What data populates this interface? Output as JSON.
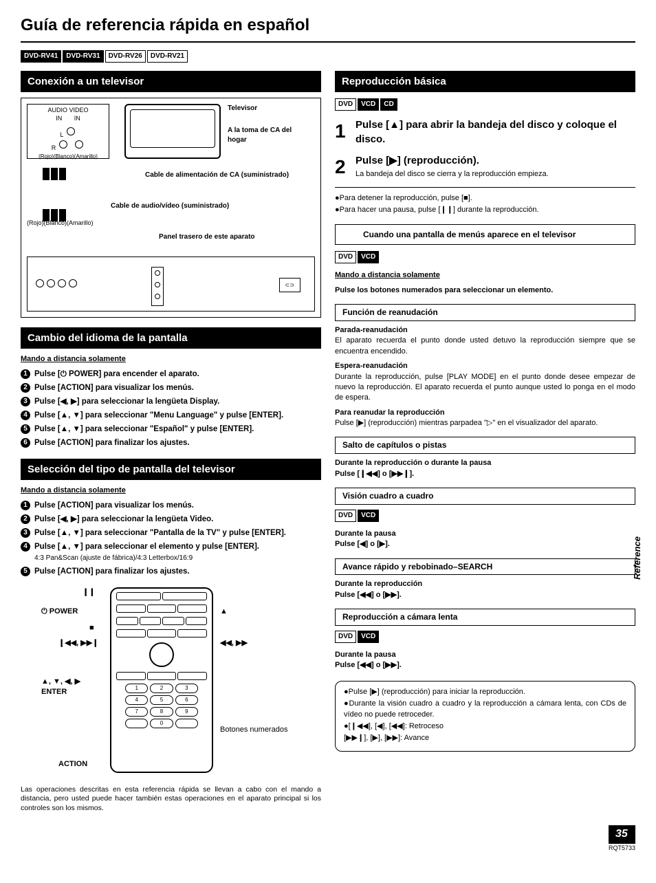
{
  "title": "Guía de referencia rápida en español",
  "models": [
    {
      "label": "DVD-RV41",
      "style": "inv"
    },
    {
      "label": "DVD-RV31",
      "style": "inv"
    },
    {
      "label": "DVD-RV26",
      "style": "out"
    },
    {
      "label": "DVD-RV21",
      "style": "out"
    }
  ],
  "left": {
    "sec1": {
      "header": "Conexión a un televisor",
      "tv": "Televisor",
      "ac": "A la toma de CA del hogar",
      "audio_header": "AUDIO VIDEO\nIN       IN",
      "cable_ac": "Cable de alimentación de CA (suministrado)",
      "cable_av": "Cable de audio/vídeo (suministrado)",
      "panel": "Panel trasero de este aparato",
      "colors": "(Rojo)(Blanco)(Amarillo)"
    },
    "sec2": {
      "header": "Cambio del idioma de la pantalla",
      "sub": "Mando a distancia solamente",
      "items": [
        "Pulse [⏻ POWER] para encender el aparato.",
        "Pulse [ACTION] para visualizar los menús.",
        "Pulse [◀, ▶] para seleccionar la lengüeta Display.",
        "Pulse [▲, ▼] para seleccionar \"Menu Language\" y pulse [ENTER].",
        "Pulse [▲, ▼] para seleccionar \"Español\" y pulse [ENTER].",
        "Pulse [ACTION] para finalizar los ajustes."
      ]
    },
    "sec3": {
      "header": "Selección del tipo de pantalla del televisor",
      "sub": "Mando a distancia solamente",
      "items": [
        {
          "t": "Pulse [ACTION] para visualizar los menús."
        },
        {
          "t": "Pulse [◀, ▶] para seleccionar la lengüeta Video."
        },
        {
          "t": "Pulse [▲, ▼] para seleccionar \"Pantalla de la TV\" y pulse [ENTER]."
        },
        {
          "t": "Pulse [▲, ▼] para seleccionar el elemento y pulse [ENTER].",
          "s": "4:3 Pan&Scan (ajuste de fábrica)/4:3 Letterbox/16:9"
        },
        {
          "t": "Pulse [ACTION] para finalizar los ajustes."
        }
      ]
    },
    "remote": {
      "labels": {
        "pause": "❙❙",
        "power": "⏻ POWER",
        "stop": "■",
        "skip": "❙◀◀, ▶▶❙",
        "arrows": "▲, ▼, ◀, ▶\nENTER",
        "action": "ACTION",
        "eject": "▲",
        "search": "◀◀, ▶▶",
        "numbered": "Botones numerados"
      },
      "note": "Las operaciones descritas en esta referencia rápida se llevan a cabo con el mando a distancia, pero usted puede hacer también estas operaciones en el aparato principal si los controles son los mismos."
    }
  },
  "right": {
    "sec1": {
      "header": "Reproducción básica",
      "discs": [
        {
          "label": "DVD",
          "style": "out"
        },
        {
          "label": "VCD",
          "style": "inv"
        },
        {
          "label": "CD",
          "style": "inv"
        }
      ],
      "step1": "Pulse [▲] para abrir la bandeja del disco y coloque el disco.",
      "step2h": "Pulse [▶] (reproducción).",
      "step2s": "La bandeja del disco se cierra y la reproducción empieza.",
      "bullets": [
        "●Para detener la reproducción, pulse [■].",
        "●Para hacer una pausa, pulse [❙❙] durante la reproducción."
      ],
      "menubox": "Cuando una pantalla de menús aparece en el televisor",
      "discs2": [
        {
          "label": "DVD",
          "style": "out"
        },
        {
          "label": "VCD",
          "style": "inv"
        }
      ],
      "remote_only": "Mando a distancia solamente",
      "press_num": "Pulse los botones numerados para seleccionar un elemento."
    },
    "resume": {
      "header": "Función de reanudación",
      "p1h": "Parada-reanudación",
      "p1": "El aparato recuerda el punto donde usted detuvo la reproducción siempre que se encuentra encendido.",
      "p2h": "Espera-reanudación",
      "p2": "Durante la reproducción, pulse [PLAY MODE] en el punto donde desee empezar de nuevo la reproducción. El aparato recuerda el punto aunque usted lo ponga en el modo de espera.",
      "p3h": "Para reanudar la reproducción",
      "p3": "Pulse [▶] (reproducción) mientras parpadea \"▷\" en el visualizador del aparato."
    },
    "skip": {
      "header": "Salto de capítulos o pistas",
      "p1": "Durante la reproducción o durante la pausa",
      "p2": "Pulse [❙◀◀] o [▶▶❙]."
    },
    "frame": {
      "header": "Visión cuadro a cuadro",
      "discs": [
        {
          "label": "DVD",
          "style": "out"
        },
        {
          "label": "VCD",
          "style": "inv"
        }
      ],
      "p1": "Durante la pausa",
      "p2": "Pulse [◀] o [▶]."
    },
    "search": {
      "header": "Avance rápido y rebobinado–SEARCH",
      "p1": "Durante la reproducción",
      "p2": "Pulse [◀◀] o [▶▶]."
    },
    "slow": {
      "header": "Reproducción a cámara lenta",
      "discs": [
        {
          "label": "DVD",
          "style": "out"
        },
        {
          "label": "VCD",
          "style": "inv"
        }
      ],
      "p1": "Durante la pausa",
      "p2": "Pulse [◀◀] o [▶▶]."
    },
    "roundnote": [
      "●Pulse [▶] (reproducción) para iniciar la reproducción.",
      "●Durante la visión cuadro a cuadro y la reproducción a cámara lenta, con CDs de vídeo no puede retroceder.",
      "●[❙◀◀], [◀], [◀◀]: Retroceso",
      "  [▶▶❙], [▶], [▶▶]: Avance"
    ]
  },
  "side_ref": "Reference",
  "page_num": "35",
  "doc_code": "RQT5733"
}
